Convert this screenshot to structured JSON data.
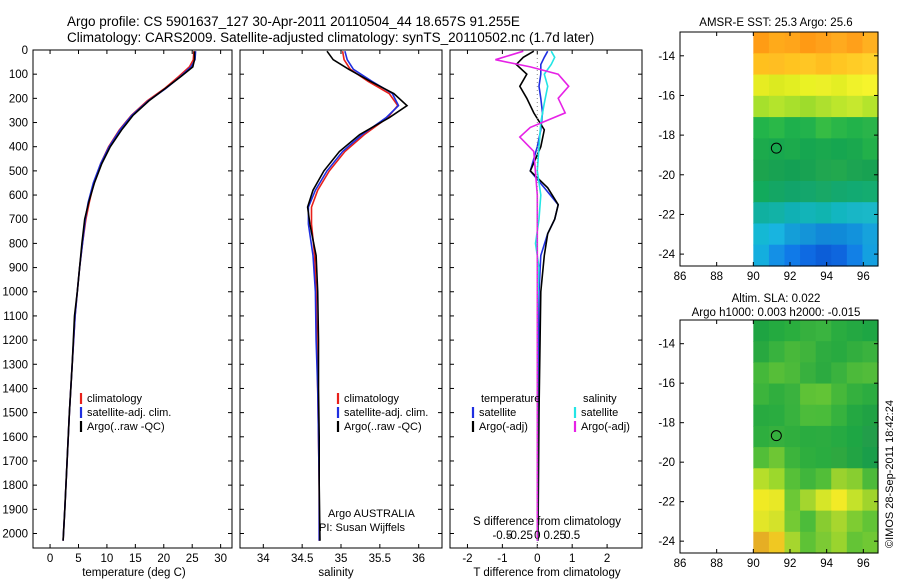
{
  "header": {
    "line1": "Argo profile: CS 5901637_127 30-Apr-2011 20110504_44 18.657S 91.255E",
    "line2": "Climatology: CARS2009. Satellite-adjusted climatology: synTS_20110502.nc (1.7d later)"
  },
  "colors": {
    "climatology": "#e8201a",
    "satellite": "#1f2fe0",
    "argo": "#000000",
    "sal_satellite": "#22e5e5",
    "sal_argo": "#e622e6"
  },
  "chart_data": [
    {
      "id": "temperature",
      "type": "line",
      "xlabel": "temperature (deg C)",
      "ylabel": "",
      "xlim": [
        -3,
        32
      ],
      "ylim": [
        2060,
        0
      ],
      "xticks": [
        0,
        5,
        10,
        15,
        20,
        25,
        30
      ],
      "xticklabels": [
        "0",
        "5",
        "10",
        "15",
        "20",
        "25",
        "30"
      ],
      "yticks": [
        0,
        100,
        200,
        300,
        400,
        500,
        600,
        700,
        800,
        900,
        1000,
        1100,
        1200,
        1300,
        1400,
        1500,
        1600,
        1700,
        1800,
        1900,
        2000
      ],
      "yticklabels": [
        "0",
        "100",
        "200",
        "300",
        "400",
        "500",
        "600",
        "700",
        "800",
        "900",
        "1000",
        "1100",
        "1200",
        "1300",
        "1400",
        "1500",
        "1600",
        "1700",
        "1800",
        "1900",
        "2000"
      ],
      "legend": [
        "climatology",
        "satellite-adj. clim.",
        "Argo(..raw -QC)"
      ],
      "series": [
        {
          "name": "climatology",
          "color": "#e8201a",
          "x": [
            25.3,
            25.2,
            24.5,
            22.6,
            20.1,
            17.1,
            14.3,
            12.2,
            10.3,
            8.9,
            7.7,
            6.9,
            6.3,
            5.7,
            5.2,
            4.8,
            4.4,
            3.9,
            3.4,
            3.0,
            2.6,
            2.3
          ],
          "y": [
            5,
            40,
            70,
            110,
            160,
            210,
            270,
            330,
            400,
            470,
            550,
            630,
            700,
            800,
            900,
            1000,
            1100,
            1300,
            1500,
            1700,
            1900,
            2030
          ]
        },
        {
          "name": "satellite-adj. clim.",
          "color": "#1f2fe0",
          "x": [
            25.6,
            25.5,
            24.8,
            22.9,
            20.3,
            17.3,
            14.4,
            12.3,
            10.4,
            8.9,
            7.6,
            6.7,
            6.2,
            5.7,
            5.2,
            4.8,
            4.4,
            3.9,
            3.4,
            3.0,
            2.6,
            2.3
          ],
          "y": [
            5,
            40,
            70,
            110,
            160,
            210,
            270,
            330,
            400,
            470,
            550,
            630,
            700,
            800,
            900,
            1000,
            1100,
            1300,
            1500,
            1700,
            1900,
            2030
          ]
        },
        {
          "name": "Argo(..raw -QC)",
          "color": "#000000",
          "x": [
            25.4,
            25.4,
            25.1,
            23.0,
            20.2,
            17.4,
            14.6,
            12.6,
            10.6,
            9.1,
            7.8,
            6.8,
            6.1,
            5.6,
            5.2,
            4.8,
            4.3,
            3.9,
            3.4,
            3.0,
            2.6,
            2.3
          ],
          "y": [
            5,
            40,
            70,
            110,
            160,
            210,
            270,
            330,
            400,
            470,
            550,
            630,
            700,
            800,
            900,
            1000,
            1100,
            1300,
            1500,
            1700,
            1900,
            2030
          ]
        }
      ]
    },
    {
      "id": "salinity",
      "type": "line",
      "xlabel": "salinity",
      "xlim": [
        33.7,
        36.3
      ],
      "ylim": [
        2060,
        0
      ],
      "xticks": [
        34,
        34.5,
        35,
        35.5,
        36
      ],
      "xticklabels": [
        "34",
        "34.5",
        "35",
        "35.5",
        "36"
      ],
      "legend": [
        "climatology",
        "satellite-adj. clim.",
        "Argo(..raw -QC)"
      ],
      "annotation": [
        "Argo AUSTRALIA",
        "PI: Susan Wijffels"
      ],
      "series": [
        {
          "name": "climatology",
          "color": "#e8201a",
          "x": [
            35.02,
            35.04,
            35.12,
            35.35,
            35.62,
            35.73,
            35.6,
            35.3,
            35.05,
            34.85,
            34.7,
            34.62,
            34.62,
            34.66,
            34.68,
            34.69,
            34.7,
            34.71,
            34.72,
            34.72
          ],
          "y": [
            5,
            40,
            80,
            130,
            180,
            230,
            280,
            350,
            420,
            500,
            580,
            650,
            720,
            850,
            1000,
            1200,
            1400,
            1600,
            1800,
            2030
          ]
        },
        {
          "name": "satellite-adj. clim.",
          "color": "#1f2fe0",
          "x": [
            35.05,
            35.08,
            35.16,
            35.4,
            35.66,
            35.74,
            35.58,
            35.27,
            35.02,
            34.82,
            34.67,
            34.58,
            34.58,
            34.64,
            34.67,
            34.68,
            34.7,
            34.71,
            34.72,
            34.72
          ],
          "y": [
            5,
            40,
            80,
            130,
            180,
            230,
            280,
            350,
            420,
            500,
            580,
            650,
            720,
            850,
            1000,
            1200,
            1400,
            1600,
            1800,
            2030
          ]
        },
        {
          "name": "Argo(..raw -QC)",
          "color": "#000000",
          "x": [
            34.82,
            34.9,
            35.1,
            35.38,
            35.68,
            35.85,
            35.62,
            35.24,
            34.98,
            34.78,
            34.64,
            34.57,
            34.6,
            34.68,
            34.7,
            34.71,
            34.71,
            34.72,
            34.72,
            34.73
          ],
          "y": [
            5,
            40,
            80,
            130,
            180,
            230,
            280,
            350,
            420,
            500,
            580,
            650,
            720,
            850,
            1000,
            1200,
            1400,
            1600,
            1800,
            2030
          ]
        }
      ]
    },
    {
      "id": "difference",
      "type": "line",
      "xlabel": "T difference from climatology",
      "xlabel_top": "S difference from climatology",
      "xlim": [
        -2.5,
        3.0
      ],
      "ylim": [
        2060,
        0
      ],
      "xticks": [
        -2,
        -1,
        0,
        1,
        2
      ],
      "xticklabels": [
        "-2",
        "-1",
        "0",
        "1",
        "2"
      ],
      "s_ticks": [
        -1,
        -0.5,
        0,
        0.5,
        1
      ],
      "s_ticklabels": [
        "-0.5",
        "-0.25",
        "0",
        "0.25",
        "0.5"
      ],
      "legend_temperature": [
        "temperature",
        "satellite",
        "Argo(-adj)"
      ],
      "legend_salinity": [
        "salinity",
        "satellite",
        "Argo(-adj)"
      ],
      "series": [
        {
          "name": "temperature satellite",
          "color": "#1f2fe0",
          "x": [
            0.3,
            0.2,
            0.1,
            0.1,
            0.05,
            0.1,
            0.15,
            0.1,
            0.0,
            -0.2,
            0.2,
            0.6,
            0.5,
            0.3,
            0.1,
            0.05,
            0.03,
            0.0
          ],
          "y": [
            5,
            30,
            60,
            100,
            150,
            200,
            260,
            330,
            400,
            500,
            570,
            640,
            700,
            760,
            850,
            1000,
            1500,
            2030
          ]
        },
        {
          "name": "temperature Argo(-adj)",
          "color": "#000000",
          "x": [
            -0.1,
            -0.4,
            -0.6,
            -0.3,
            -0.5,
            -0.3,
            -0.1,
            0.2,
            0.1,
            -0.2,
            0.3,
            0.6,
            0.5,
            0.3,
            0.2,
            0.1,
            0.05,
            0.02
          ],
          "y": [
            5,
            30,
            60,
            100,
            150,
            200,
            260,
            330,
            400,
            500,
            570,
            640,
            700,
            760,
            850,
            1000,
            1500,
            2030
          ]
        },
        {
          "name": "salinity satellite",
          "color": "#22e5e5",
          "x": [
            0.4,
            0.5,
            0.4,
            0.2,
            0.3,
            0.2,
            0.1,
            0.05,
            0.0,
            0.1,
            0.05,
            -0.05,
            0.05,
            0.0,
            0.0
          ],
          "y": [
            5,
            30,
            60,
            100,
            150,
            220,
            300,
            400,
            500,
            600,
            700,
            800,
            900,
            1100,
            2030
          ]
        },
        {
          "name": "salinity Argo(-adj)",
          "color": "#e622e6",
          "x": [
            -0.4,
            -1.2,
            -0.2,
            0.6,
            0.9,
            0.6,
            0.8,
            -0.2,
            -0.5,
            -0.1,
            0.0,
            0.0
          ],
          "y": [
            5,
            40,
            70,
            100,
            150,
            200,
            260,
            320,
            360,
            420,
            600,
            2030
          ]
        }
      ]
    },
    {
      "id": "sst_map",
      "type": "heatmap",
      "title": "AMSR-E SST: 25.3 Argo: 25.6",
      "xlim": [
        86,
        96.8
      ],
      "ylim": [
        -24.6,
        -12.8
      ],
      "xticks": [
        86,
        88,
        90,
        92,
        94,
        96
      ],
      "xticklabels": [
        "86",
        "88",
        "90",
        "92",
        "94",
        "96"
      ],
      "yticks": [
        -14,
        -16,
        -18,
        -20,
        -22,
        -24
      ],
      "yticklabels": [
        "-14",
        "-16",
        "-18",
        "-20",
        "-22",
        "-24"
      ],
      "data_xrange": [
        90,
        96.8
      ],
      "argo_position": [
        91.255,
        -18.657
      ],
      "rows": [
        [
          "#ff9c14",
          "#ffaa1a",
          "#ffa51a",
          "#ff9a14",
          "#ffa11a",
          "#ffaa1e",
          "#ffa01a",
          "#ffb020"
        ],
        [
          "#ffc01e",
          "#ffbe22",
          "#ffc420",
          "#ffc624",
          "#ffbe20",
          "#ffc622",
          "#ffcc26",
          "#ffd22a"
        ],
        [
          "#e6ec22",
          "#dcea20",
          "#e2ee22",
          "#eaf224",
          "#ecf028",
          "#e4ee24",
          "#f0f22a",
          "#f6f42c"
        ],
        [
          "#a6e02c",
          "#b4e42c",
          "#a8e02c",
          "#9edc2c",
          "#aee02e",
          "#bce62c",
          "#c6e82e",
          "#b4e42c"
        ],
        [
          "#22b44a",
          "#2ab848",
          "#1eb04c",
          "#22b24c",
          "#36bc44",
          "#2ab648",
          "#22b24a",
          "#2ab44a"
        ],
        [
          "#1caa4c",
          "#18a84e",
          "#1caa4c",
          "#16a650",
          "#1aa84e",
          "#16a650",
          "#1aa84e",
          "#22b04a"
        ],
        [
          "#1ca44e",
          "#18a252",
          "#14a054",
          "#18a252",
          "#20a650",
          "#22a84e",
          "#1ca452",
          "#18a252"
        ],
        [
          "#12aa5c",
          "#14a664",
          "#12a46a",
          "#14a66c",
          "#18a866",
          "#14a86e",
          "#12aa72",
          "#14ac70"
        ],
        [
          "#10b0a0",
          "#12b2a6",
          "#10b0b4",
          "#12b4b8",
          "#10b4b0",
          "#12b6c0",
          "#18b6c6",
          "#1ab8c8"
        ],
        [
          "#14b8d4",
          "#18b4e0",
          "#149ed8",
          "#1494d8",
          "#1288d8",
          "#108ad8",
          "#1292dc",
          "#16a2dc"
        ],
        [
          "#14aede",
          "#1490e6",
          "#107ae8",
          "#0e6ae2",
          "#0c5ed8",
          "#0e66de",
          "#1280e6",
          "#14a0e0"
        ]
      ]
    },
    {
      "id": "sla_map",
      "type": "heatmap",
      "title": "Altim. SLA: 0.022",
      "subtitle": "Argo h1000: 0.003 h2000: -0.015",
      "xlim": [
        86,
        96.8
      ],
      "ylim": [
        -24.6,
        -12.8
      ],
      "xticks": [
        86,
        88,
        90,
        92,
        94,
        96
      ],
      "xticklabels": [
        "86",
        "88",
        "90",
        "92",
        "94",
        "96"
      ],
      "yticks": [
        -14,
        -16,
        -18,
        -20,
        -22,
        -24
      ],
      "yticklabels": [
        "-14",
        "-16",
        "-18",
        "-20",
        "-22",
        "-24"
      ],
      "data_xrange": [
        90,
        96.8
      ],
      "argo_position": [
        91.255,
        -18.657
      ],
      "rows": [
        [
          "#1ea442",
          "#24aa40",
          "#2aae3e",
          "#36b03e",
          "#3ab440",
          "#2aac40",
          "#24a842",
          "#1ea644"
        ],
        [
          "#28a840",
          "#38b23e",
          "#48b83a",
          "#40b43c",
          "#2eac40",
          "#28aa40",
          "#32ae3e",
          "#3ab23e"
        ],
        [
          "#44b83a",
          "#56be38",
          "#4cba3a",
          "#38b03e",
          "#2caa40",
          "#3ab23e",
          "#4cba3a",
          "#52bc3a"
        ],
        [
          "#3cb43c",
          "#30ae3e",
          "#3ab23e",
          "#5ec236",
          "#62c436",
          "#46b83a",
          "#34b03e",
          "#2cac40"
        ],
        [
          "#28aa40",
          "#2aac40",
          "#38b23e",
          "#4cbc3a",
          "#4abc3a",
          "#36b23e",
          "#24a842",
          "#20a244"
        ],
        [
          "#2eae3e",
          "#36b03e",
          "#30ae3e",
          "#2aac40",
          "#2cac40",
          "#26aa42",
          "#1ea644",
          "#229e4a"
        ],
        [
          "#52be38",
          "#6ec634",
          "#3cb43c",
          "#2eae3e",
          "#2aac40",
          "#2ea840",
          "#22a444",
          "#1a9e4a"
        ],
        [
          "#b6de2a",
          "#9cd82c",
          "#56c038",
          "#40b63c",
          "#52be38",
          "#9ad22e",
          "#88ce30",
          "#4cba3a"
        ],
        [
          "#f0ea24",
          "#e8e826",
          "#6cc836",
          "#a4d62e",
          "#d6e628",
          "#f2ea26",
          "#c4e22a",
          "#a0d42c"
        ],
        [
          "#e2e628",
          "#d4e22a",
          "#74ca34",
          "#4cbc3a",
          "#88cc30",
          "#a8d62e",
          "#7ecc32",
          "#62c436"
        ],
        [
          "#e6ae24",
          "#f0c822",
          "#a6d62e",
          "#5ec236",
          "#7cca34",
          "#9ad42e",
          "#64c436",
          "#70c834"
        ]
      ]
    }
  ],
  "footer": {
    "watermark": "©IMOS 28-Sep-2011 18:42:24"
  }
}
